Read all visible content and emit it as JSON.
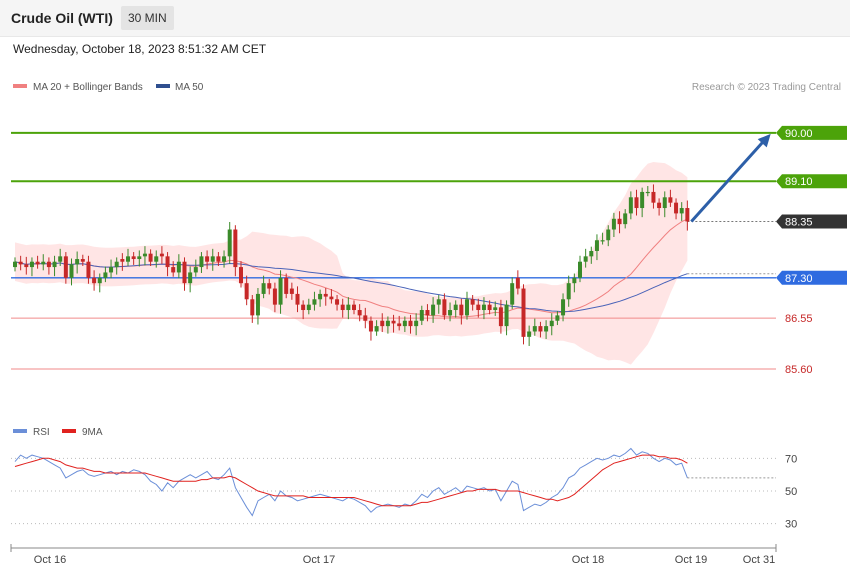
{
  "header": {
    "title": "Crude Oil (WTI)",
    "interval": "30 MIN",
    "timestamp": "Wednesday, October 18, 2023 8:51:32 AM CET"
  },
  "legend": {
    "ma20_bb": "MA 20 + Bollinger Bands",
    "ma50": "MA 50",
    "copyright": "Research © 2023 Trading Central",
    "rsi": "RSI",
    "rsi_ma": "9MA"
  },
  "colors": {
    "up": "#3a8a2a",
    "down": "#c62828",
    "band_fill": "#ffdcdc",
    "ma20": "#f08080",
    "ma50": "#4a63b8",
    "resistance": "#4ca30a",
    "support": "#f08a8a",
    "pivot": "#2f6be0",
    "current": "#333333",
    "arrow": "#2d5fa8",
    "rsi": "#6b8fd8",
    "rsi_ma": "#e0221f"
  },
  "chart_data": [
    {
      "type": "candlestick",
      "ylim": [
        84.8,
        90.65
      ],
      "x_labels": [
        "Oct 16",
        "Oct 17",
        "Oct 18",
        "Oct 19",
        "Oct 31"
      ],
      "levels": [
        {
          "value": 90.0,
          "label": "90.00",
          "kind": "resistance"
        },
        {
          "value": 89.1,
          "label": "89.10",
          "kind": "resistance"
        },
        {
          "value": 88.35,
          "label": "88.35",
          "kind": "current"
        },
        {
          "value": 87.3,
          "label": "87.30",
          "kind": "pivot"
        },
        {
          "value": 86.55,
          "label": "86.55",
          "kind": "support"
        },
        {
          "value": 85.6,
          "label": "85.60",
          "kind": "support"
        }
      ],
      "projection": {
        "from": 88.35,
        "to": 90.0
      },
      "closes": [
        87.6,
        87.55,
        87.5,
        87.6,
        87.55,
        87.6,
        87.5,
        87.6,
        87.7,
        87.3,
        87.55,
        87.65,
        87.6,
        87.3,
        87.2,
        87.3,
        87.4,
        87.5,
        87.6,
        87.6,
        87.7,
        87.65,
        87.7,
        87.75,
        87.6,
        87.7,
        87.7,
        87.5,
        87.4,
        87.6,
        87.2,
        87.4,
        87.5,
        87.7,
        87.6,
        87.7,
        87.6,
        87.7,
        88.2,
        87.5,
        87.2,
        86.9,
        86.6,
        87.0,
        87.2,
        87.1,
        86.8,
        87.3,
        87.0,
        87.0,
        86.8,
        86.7,
        86.8,
        86.9,
        87.0,
        86.95,
        86.9,
        86.8,
        86.7,
        86.8,
        86.7,
        86.6,
        86.5,
        86.3,
        86.4,
        86.4,
        86.5,
        86.45,
        86.4,
        86.5,
        86.4,
        86.5,
        86.7,
        86.6,
        86.8,
        86.9,
        86.6,
        86.7,
        86.8,
        86.6,
        86.9,
        86.8,
        86.7,
        86.8,
        86.7,
        86.75,
        86.4,
        86.8,
        87.2,
        87.1,
        86.2,
        86.3,
        86.4,
        86.3,
        86.4,
        86.5,
        86.6,
        86.9,
        87.2,
        87.3,
        87.6,
        87.7,
        87.8,
        88.0,
        88.0,
        88.2,
        88.4,
        88.3,
        88.5,
        88.8,
        88.6,
        88.9,
        88.9,
        88.7,
        88.6,
        88.8,
        88.7,
        88.5,
        88.6,
        88.35
      ],
      "opens": [
        87.5,
        87.6,
        87.55,
        87.5,
        87.6,
        87.55,
        87.6,
        87.5,
        87.6,
        87.7,
        87.3,
        87.55,
        87.65,
        87.6,
        87.3,
        87.2,
        87.3,
        87.4,
        87.5,
        87.65,
        87.6,
        87.7,
        87.65,
        87.7,
        87.75,
        87.6,
        87.75,
        87.7,
        87.5,
        87.4,
        87.6,
        87.2,
        87.4,
        87.5,
        87.7,
        87.6,
        87.7,
        87.6,
        87.7,
        88.2,
        87.5,
        87.2,
        86.9,
        86.6,
        87.0,
        87.2,
        87.1,
        86.8,
        87.3,
        87.1,
        87.0,
        86.8,
        86.7,
        86.8,
        86.9,
        87.0,
        86.95,
        86.9,
        86.8,
        86.7,
        86.8,
        86.7,
        86.6,
        86.5,
        86.3,
        86.5,
        86.4,
        86.5,
        86.45,
        86.4,
        86.5,
        86.4,
        86.5,
        86.7,
        86.6,
        86.8,
        86.9,
        86.6,
        86.7,
        86.8,
        86.6,
        86.9,
        86.8,
        86.7,
        86.8,
        86.7,
        86.75,
        86.4,
        86.8,
        87.3,
        87.1,
        86.2,
        86.3,
        86.4,
        86.3,
        86.4,
        86.5,
        86.6,
        86.9,
        87.2,
        87.3,
        87.6,
        87.7,
        87.8,
        88.0,
        88.0,
        88.2,
        88.4,
        88.3,
        88.5,
        88.8,
        88.6,
        88.9,
        88.9,
        88.7,
        88.6,
        88.8,
        88.7,
        88.5,
        88.6
      ],
      "rsi": {
        "ylim": [
          20,
          80
        ],
        "ticks": [
          30,
          50,
          70
        ],
        "values": [
          68,
          72,
          70,
          72,
          71,
          70,
          68,
          66,
          64,
          58,
          60,
          62,
          63,
          60,
          59,
          60,
          61,
          62,
          60,
          62,
          61,
          63,
          62,
          60,
          56,
          54,
          50,
          55,
          52,
          56,
          58,
          60,
          58,
          60,
          62,
          58,
          57,
          60,
          64,
          52,
          46,
          40,
          35,
          44,
          46,
          48,
          44,
          50,
          47,
          46,
          44,
          45,
          46,
          47,
          48,
          47,
          46,
          45,
          44,
          46,
          45,
          43,
          41,
          37,
          40,
          41,
          42,
          41,
          40,
          42,
          41,
          44,
          48,
          46,
          50,
          52,
          48,
          50,
          52,
          49,
          53,
          52,
          51,
          52,
          50,
          51,
          44,
          50,
          56,
          54,
          38,
          40,
          42,
          41,
          43,
          46,
          48,
          52,
          58,
          60,
          64,
          66,
          68,
          70,
          69,
          70,
          72,
          71,
          73,
          76,
          72,
          74,
          73,
          70,
          68,
          70,
          69,
          66,
          67,
          58
        ],
        "ma": [
          65,
          66,
          67,
          68,
          69,
          70,
          70,
          69,
          68,
          66,
          65,
          64,
          64,
          63,
          62,
          62,
          61,
          61,
          61,
          61,
          61,
          61,
          61,
          61,
          60,
          59,
          58,
          57,
          56,
          56,
          56,
          56,
          56,
          57,
          57,
          58,
          58,
          58,
          59,
          58,
          56,
          54,
          52,
          50,
          49,
          48,
          47,
          47,
          47,
          47,
          47,
          47,
          46,
          46,
          46,
          46,
          46,
          46,
          46,
          46,
          46,
          45,
          44,
          43,
          42,
          41,
          41,
          41,
          41,
          41,
          41,
          42,
          43,
          43,
          44,
          45,
          46,
          47,
          48,
          49,
          50,
          50,
          51,
          51,
          51,
          51,
          50,
          50,
          50,
          50,
          49,
          48,
          47,
          46,
          45,
          45,
          44,
          45,
          46,
          48,
          51,
          54,
          57,
          60,
          63,
          65,
          67,
          68,
          69,
          70,
          71,
          72,
          72,
          72,
          71,
          71,
          70,
          70,
          69,
          67
        ]
      }
    }
  ]
}
